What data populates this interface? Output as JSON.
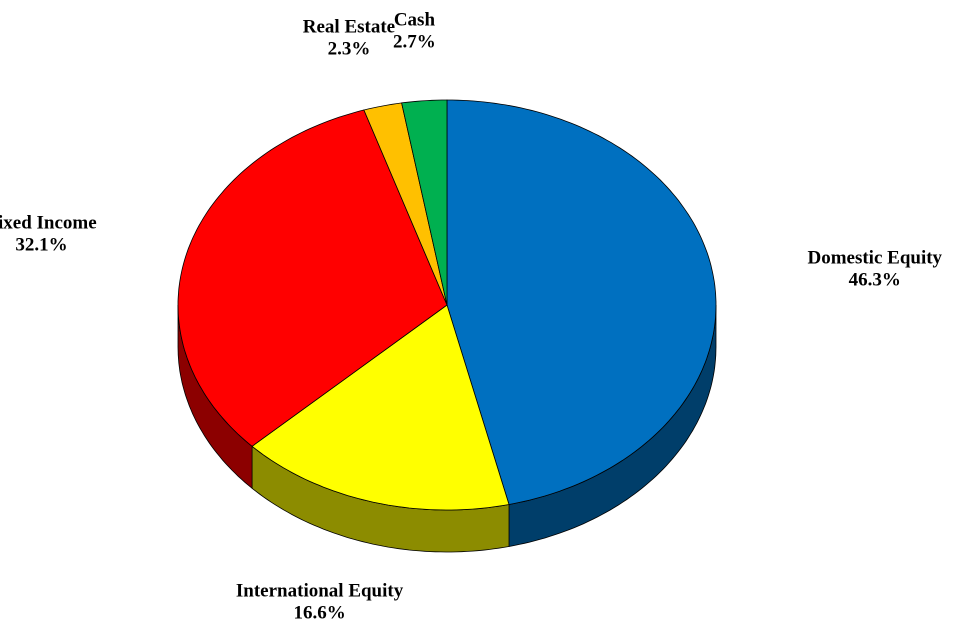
{
  "chart_data": {
    "type": "pie",
    "categories": [
      "Domestic Equity",
      "International Equity",
      "Fixed Income",
      "Real Estate",
      "Cash"
    ],
    "values": [
      46.3,
      16.6,
      32.1,
      2.3,
      2.7
    ],
    "value_labels": [
      "46.3%",
      "16.6%",
      "32.1%",
      "2.3%",
      "2.7%"
    ],
    "colors": [
      "#0070c0",
      "#ffff00",
      "#ff0000",
      "#ffc000",
      "#00b050"
    ]
  }
}
